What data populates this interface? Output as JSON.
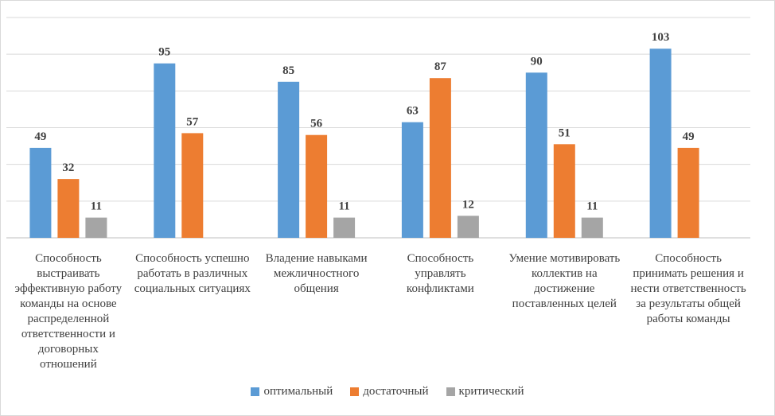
{
  "chart_data": {
    "type": "bar",
    "categories": [
      "Способность выстраивать эффективную работу команды на основе распределенной ответственности и договорных отношений",
      "Способность успешно работать в различных социальных ситуациях",
      "Владение навыками межличностного общения",
      "Способность управлять конфликтами",
      "Умение мотивировать коллектив на достижение поставленных целей",
      "Способность принимать решения и нести ответственность за результаты общей работы команды"
    ],
    "series": [
      {
        "name": "оптимальный",
        "color": "#5b9bd5",
        "values": [
          49,
          95,
          85,
          63,
          90,
          103
        ]
      },
      {
        "name": "достаточный",
        "color": "#ed7d31",
        "values": [
          32,
          57,
          56,
          87,
          51,
          49
        ]
      },
      {
        "name": "критический",
        "color": "#a5a5a5",
        "values": [
          11,
          null,
          11,
          12,
          11,
          null
        ]
      }
    ],
    "ylim": [
      0,
      120
    ],
    "gridlines": true,
    "legend": "bottom",
    "title": "",
    "xlabel": "",
    "ylabel": ""
  }
}
